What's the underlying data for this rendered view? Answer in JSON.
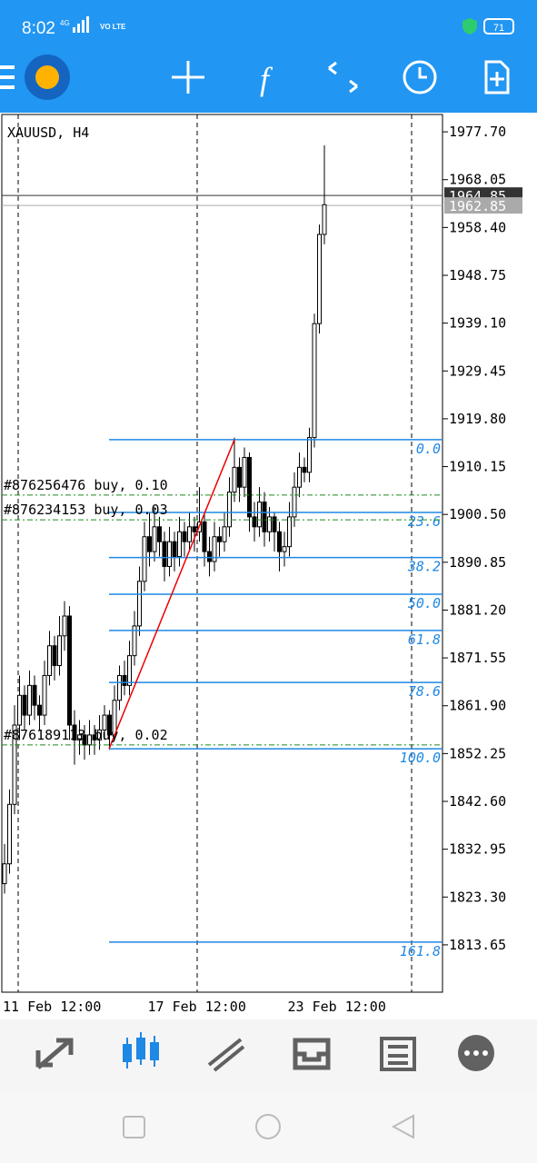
{
  "status_bar": {
    "time": "8:02",
    "network": "4G",
    "volte": "VO LTE",
    "battery": "71"
  },
  "toolbar": {
    "indicator_icon": "f"
  },
  "chart_data": {
    "type": "candlestick",
    "title": "XAUUSD, H4",
    "categories": [
      "11 Feb 12:00",
      null,
      null,
      null,
      null,
      null,
      null,
      null,
      null,
      null,
      null,
      null,
      null,
      null,
      null,
      null,
      null,
      null,
      null,
      null,
      null,
      null,
      null,
      null,
      null,
      null,
      null,
      null,
      null,
      "17 Feb 12:00",
      null,
      null,
      null,
      null,
      null,
      null,
      null,
      null,
      null,
      null,
      null,
      null,
      null,
      null,
      null,
      null,
      null,
      null,
      null,
      null,
      null,
      null,
      null,
      null,
      null,
      null,
      null,
      "23 Feb 12:00",
      null,
      null,
      null,
      null,
      null,
      null,
      null
    ],
    "candles": [
      [
        1826,
        1834,
        1824,
        1830
      ],
      [
        1830,
        1845,
        1828,
        1842
      ],
      [
        1842,
        1862,
        1840,
        1858
      ],
      [
        1858,
        1868,
        1855,
        1864
      ],
      [
        1864,
        1866,
        1857,
        1860
      ],
      [
        1860,
        1869,
        1858,
        1866
      ],
      [
        1866,
        1868,
        1859,
        1862
      ],
      [
        1862,
        1864,
        1857,
        1860
      ],
      [
        1860,
        1871,
        1858,
        1868
      ],
      [
        1868,
        1877,
        1866,
        1874
      ],
      [
        1874,
        1876,
        1867,
        1870
      ],
      [
        1870,
        1880,
        1868,
        1876
      ],
      [
        1876,
        1883,
        1873,
        1880
      ],
      [
        1880,
        1882,
        1855,
        1858
      ],
      [
        1858,
        1861,
        1850,
        1855
      ],
      [
        1855,
        1859,
        1852,
        1856
      ],
      [
        1856,
        1858,
        1851,
        1854
      ],
      [
        1854,
        1859,
        1852,
        1856
      ],
      [
        1856,
        1858,
        1852,
        1855
      ],
      [
        1855,
        1860,
        1853,
        1857
      ],
      [
        1857,
        1862,
        1855,
        1860
      ],
      [
        1860,
        1861,
        1853,
        1856
      ],
      [
        1856,
        1866,
        1855,
        1863
      ],
      [
        1863,
        1870,
        1861,
        1868
      ],
      [
        1868,
        1871,
        1864,
        1866
      ],
      [
        1866,
        1875,
        1864,
        1872
      ],
      [
        1872,
        1881,
        1870,
        1878
      ],
      [
        1878,
        1890,
        1876,
        1887
      ],
      [
        1887,
        1899,
        1885,
        1896
      ],
      [
        1896,
        1901,
        1890,
        1893
      ],
      [
        1893,
        1902,
        1891,
        1898
      ],
      [
        1898,
        1900,
        1892,
        1895
      ],
      [
        1895,
        1897,
        1887,
        1890
      ],
      [
        1890,
        1898,
        1888,
        1895
      ],
      [
        1895,
        1897,
        1889,
        1892
      ],
      [
        1892,
        1900,
        1890,
        1897
      ],
      [
        1897,
        1899,
        1892,
        1895
      ],
      [
        1895,
        1901,
        1893,
        1898
      ],
      [
        1898,
        1900,
        1893,
        1897
      ],
      [
        1897,
        1906,
        1895,
        1899
      ],
      [
        1899,
        1901,
        1890,
        1893
      ],
      [
        1893,
        1896,
        1888,
        1891
      ],
      [
        1891,
        1899,
        1889,
        1896
      ],
      [
        1896,
        1898,
        1892,
        1895
      ],
      [
        1895,
        1901,
        1893,
        1898
      ],
      [
        1898,
        1908,
        1896,
        1905
      ],
      [
        1905,
        1916,
        1903,
        1910
      ],
      [
        1910,
        1912,
        1903,
        1906
      ],
      [
        1906,
        1914,
        1904,
        1912
      ],
      [
        1912,
        1913,
        1897,
        1900
      ],
      [
        1900,
        1903,
        1895,
        1898
      ],
      [
        1898,
        1906,
        1896,
        1903
      ],
      [
        1903,
        1905,
        1894,
        1897
      ],
      [
        1897,
        1902,
        1895,
        1900
      ],
      [
        1900,
        1901,
        1893,
        1897
      ],
      [
        1897,
        1899,
        1889,
        1893
      ],
      [
        1893,
        1897,
        1890,
        1894
      ],
      [
        1894,
        1903,
        1892,
        1900
      ],
      [
        1900,
        1909,
        1898,
        1906
      ],
      [
        1906,
        1913,
        1904,
        1910
      ],
      [
        1910,
        1912,
        1907,
        1909
      ],
      [
        1909,
        1918,
        1907,
        1916
      ],
      [
        1916,
        1941,
        1914,
        1939
      ],
      [
        1939,
        1959,
        1937,
        1957
      ],
      [
        1957,
        1975,
        1955,
        1963
      ]
    ],
    "ylim": [
      1804.1,
      1981.2
    ],
    "yticks": [
      {
        "value": 1977.7,
        "label": "1977.70"
      },
      1968.05,
      {
        "value": 1958.4,
        "label": "1958.40"
      },
      1948.75,
      {
        "value": 1939.1,
        "label": "1939.10"
      },
      1929.45,
      {
        "value": 1919.8,
        "label": "1919.80"
      },
      1910.15,
      {
        "value": 1900.5,
        "label": "1900.50"
      },
      1890.85,
      {
        "value": 1881.2,
        "label": "1881.20"
      },
      1871.55,
      {
        "value": 1861.9,
        "label": "1861.90"
      },
      1852.25,
      {
        "value": 1842.6,
        "label": "1842.60"
      },
      1832.95,
      {
        "value": 1823.3,
        "label": "1823.30"
      },
      1813.65
    ],
    "price_lines": [
      1964.85,
      1962.85
    ],
    "fib_levels": [
      {
        "label": "0.0",
        "value": 1915.6
      },
      {
        "label": "23.6",
        "value": 1900.9
      },
      {
        "label": "38.2",
        "value": 1891.8
      },
      {
        "label": "50.0",
        "value": 1884.4
      },
      {
        "label": "61.8",
        "value": 1877.1
      },
      {
        "label": "78.6",
        "value": 1866.6
      },
      {
        "label": "100.0",
        "value": 1853.2
      },
      {
        "label": "161.8",
        "value": 1814.2
      }
    ],
    "orders": [
      {
        "label": "#876256476 buy, 0.10",
        "value": 1904.4
      },
      {
        "label": "#876234153 buy, 0.03",
        "value": 1899.4
      },
      {
        "label": "#876189113 buy, 0.02",
        "value": 1854.0
      }
    ]
  }
}
